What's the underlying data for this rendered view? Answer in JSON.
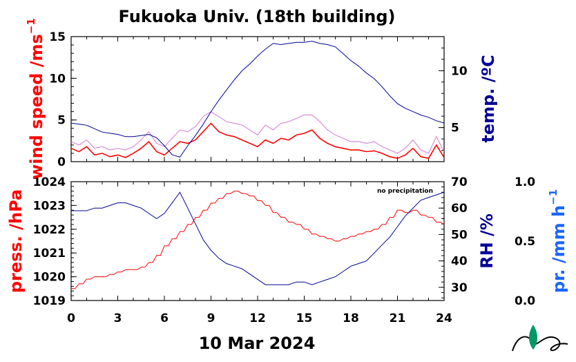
{
  "colors": {
    "wind": "#ff0000",
    "gust": "#cc66cc",
    "temp": "#000099",
    "press": "#ff0000",
    "rh": "#000099",
    "precip": "#1a66ff",
    "logo": "#009966"
  },
  "chart_data": [
    {
      "type": "line",
      "title": "Fukuoka Univ. (18th building)",
      "date": "10 Mar 2024",
      "xlim": [
        0,
        24
      ],
      "x_ticks": [
        "0",
        "3",
        "6",
        "9",
        "12",
        "15",
        "18",
        "21",
        "24"
      ],
      "left_axis": {
        "label": "wind speed /ms",
        "sup": "−1",
        "ylim": [
          0,
          15
        ],
        "ticks": [
          "0",
          "5",
          "10",
          "15"
        ]
      },
      "right_axis": {
        "label": "temp. /ºC",
        "ylim": [
          2,
          13
        ],
        "ticks": [
          "5",
          "10"
        ]
      },
      "series": [
        {
          "axis": "left",
          "x": [
            0,
            0.5,
            1,
            1.5,
            2,
            2.5,
            3,
            3.5,
            4,
            4.5,
            5,
            5.5,
            6,
            6.5,
            7,
            7.5,
            8,
            8.5,
            9,
            9.5,
            10,
            10.5,
            11,
            11.5,
            12,
            12.5,
            13,
            13.5,
            14,
            14.5,
            15,
            15.5,
            16,
            16.5,
            17,
            17.5,
            18,
            18.5,
            19,
            19.5,
            20,
            20.5,
            21,
            21.5,
            22,
            22.5,
            23,
            23.5,
            24
          ],
          "y": [
            1.6,
            1.2,
            1.8,
            0.8,
            1.0,
            0.6,
            0.8,
            0.5,
            1.0,
            1.6,
            2.4,
            1.2,
            0.8,
            1.6,
            2.4,
            2.2,
            2.6,
            3.6,
            4.6,
            3.6,
            3.2,
            3.0,
            2.6,
            2.2,
            1.8,
            2.6,
            2.2,
            2.8,
            2.6,
            3.2,
            3.4,
            3.8,
            2.8,
            2.2,
            1.8,
            1.6,
            1.4,
            1.4,
            1.2,
            1.3,
            1.0,
            0.6,
            0.4,
            0.8,
            1.6,
            0.6,
            0.4,
            2.0,
            0.5
          ]
        },
        {
          "axis": "left",
          "x": [
            0,
            0.5,
            1,
            1.5,
            2,
            2.5,
            3,
            3.5,
            4,
            4.5,
            5,
            5.5,
            6,
            6.5,
            7,
            7.5,
            8,
            8.5,
            9,
            9.5,
            10,
            10.5,
            11,
            11.5,
            12,
            12.5,
            13,
            13.5,
            14,
            14.5,
            15,
            15.5,
            16,
            16.5,
            17,
            17.5,
            18,
            18.5,
            19,
            19.5,
            20,
            20.5,
            21,
            21.5,
            22,
            22.5,
            23,
            23.5,
            24
          ],
          "y": [
            2.4,
            2.0,
            2.6,
            1.6,
            1.8,
            1.4,
            1.6,
            1.4,
            1.8,
            2.6,
            3.6,
            2.2,
            1.8,
            2.8,
            3.8,
            3.6,
            4.2,
            5.4,
            6.0,
            5.4,
            4.8,
            4.6,
            4.4,
            3.8,
            3.2,
            4.4,
            3.8,
            4.6,
            4.8,
            5.2,
            5.6,
            5.6,
            4.8,
            3.8,
            3.2,
            2.8,
            2.4,
            2.4,
            2.2,
            2.4,
            1.8,
            1.4,
            1.0,
            1.6,
            2.6,
            1.4,
            1.0,
            3.0,
            1.2
          ]
        },
        {
          "axis": "right",
          "x": [
            0,
            0.5,
            1,
            1.5,
            2,
            2.5,
            3,
            3.5,
            4,
            4.5,
            5,
            5.5,
            6,
            6.5,
            7,
            7.5,
            8,
            8.5,
            9,
            9.5,
            10,
            10.5,
            11,
            11.5,
            12,
            12.5,
            13,
            13.5,
            14,
            14.5,
            15,
            15.5,
            16,
            16.5,
            17,
            17.5,
            18,
            18.5,
            19,
            19.5,
            20,
            20.5,
            21,
            21.5,
            22,
            22.5,
            23,
            23.5,
            24
          ],
          "y": [
            5.4,
            5.3,
            5.2,
            4.9,
            4.6,
            4.5,
            4.4,
            4.2,
            4.2,
            4.3,
            4.4,
            4.1,
            3.4,
            2.6,
            2.4,
            3.4,
            4.3,
            5.3,
            6.4,
            7.4,
            8.3,
            9.2,
            10.0,
            10.6,
            11.3,
            11.9,
            12.4,
            12.3,
            12.4,
            12.5,
            12.5,
            12.6,
            12.4,
            12.3,
            12.1,
            11.5,
            10.9,
            10.4,
            9.8,
            9.3,
            8.6,
            7.8,
            7.1,
            6.7,
            6.4,
            6.1,
            5.9,
            5.6,
            5.4
          ]
        }
      ]
    },
    {
      "type": "line",
      "xlim": [
        0,
        24
      ],
      "x_ticks": [
        "0",
        "3",
        "6",
        "9",
        "12",
        "15",
        "18",
        "21",
        "24"
      ],
      "note": "no precipitation",
      "left_axis": {
        "label": "press. /hPa",
        "ylim": [
          1019,
          1024
        ],
        "ticks": [
          "1019",
          "1020",
          "1021",
          "1022",
          "1023",
          "1024"
        ]
      },
      "right_axis": {
        "label": "RH /%",
        "ylim": [
          25,
          70
        ],
        "ticks": [
          "30",
          "40",
          "50",
          "60",
          "70"
        ]
      },
      "extra_axis": {
        "label": "pr. /mm h",
        "sup": "−1",
        "ylim": [
          0,
          1
        ],
        "ticks": [
          "0.0",
          "0.5",
          "1.0"
        ]
      },
      "series": [
        {
          "axis": "left",
          "x": [
            0,
            0.5,
            1,
            1.5,
            2,
            2.5,
            3,
            3.5,
            4,
            4.5,
            5,
            5.5,
            6,
            6.5,
            7,
            7.5,
            8,
            8.5,
            9,
            9.5,
            10,
            10.5,
            11,
            11.5,
            12,
            12.5,
            13,
            13.5,
            14,
            14.5,
            15,
            15.5,
            16,
            16.5,
            17,
            17.5,
            18,
            18.5,
            19,
            19.5,
            20,
            20.5,
            21,
            21.5,
            22,
            22.5,
            23,
            23.5,
            24
          ],
          "y": [
            1019.5,
            1019.7,
            1019.9,
            1020.0,
            1020.0,
            1020.1,
            1020.2,
            1020.3,
            1020.3,
            1020.4,
            1020.6,
            1020.9,
            1021.3,
            1021.6,
            1021.9,
            1022.2,
            1022.5,
            1022.8,
            1023.1,
            1023.3,
            1023.5,
            1023.6,
            1023.5,
            1023.4,
            1023.2,
            1023.0,
            1022.7,
            1022.5,
            1022.3,
            1022.2,
            1022.0,
            1021.8,
            1021.7,
            1021.6,
            1021.5,
            1021.6,
            1021.7,
            1021.8,
            1021.9,
            1022.0,
            1022.2,
            1022.5,
            1022.8,
            1022.7,
            1022.8,
            1022.6,
            1022.5,
            1022.3,
            1022.2
          ]
        },
        {
          "axis": "right",
          "x": [
            0,
            0.5,
            1,
            1.5,
            2,
            2.5,
            3,
            3.5,
            4,
            4.5,
            5,
            5.5,
            6,
            6.5,
            7,
            7.5,
            8,
            8.5,
            9,
            9.5,
            10,
            10.5,
            11,
            11.5,
            12,
            12.5,
            13,
            13.5,
            14,
            14.5,
            15,
            15.5,
            16,
            16.5,
            17,
            17.5,
            18,
            18.5,
            19,
            19.5,
            20,
            20.5,
            21,
            21.5,
            22,
            22.5,
            23,
            23.5,
            24
          ],
          "y": [
            59,
            59,
            59,
            60,
            60,
            61,
            62,
            62,
            61,
            60,
            58,
            56,
            58,
            62,
            66,
            60,
            54,
            48,
            44,
            41,
            39,
            38,
            37,
            35,
            33,
            31,
            31,
            31,
            31,
            32,
            32,
            31,
            32,
            33,
            34,
            36,
            38,
            39,
            40,
            43,
            46,
            49,
            53,
            57,
            60,
            63,
            64,
            65,
            66
          ]
        }
      ]
    }
  ]
}
